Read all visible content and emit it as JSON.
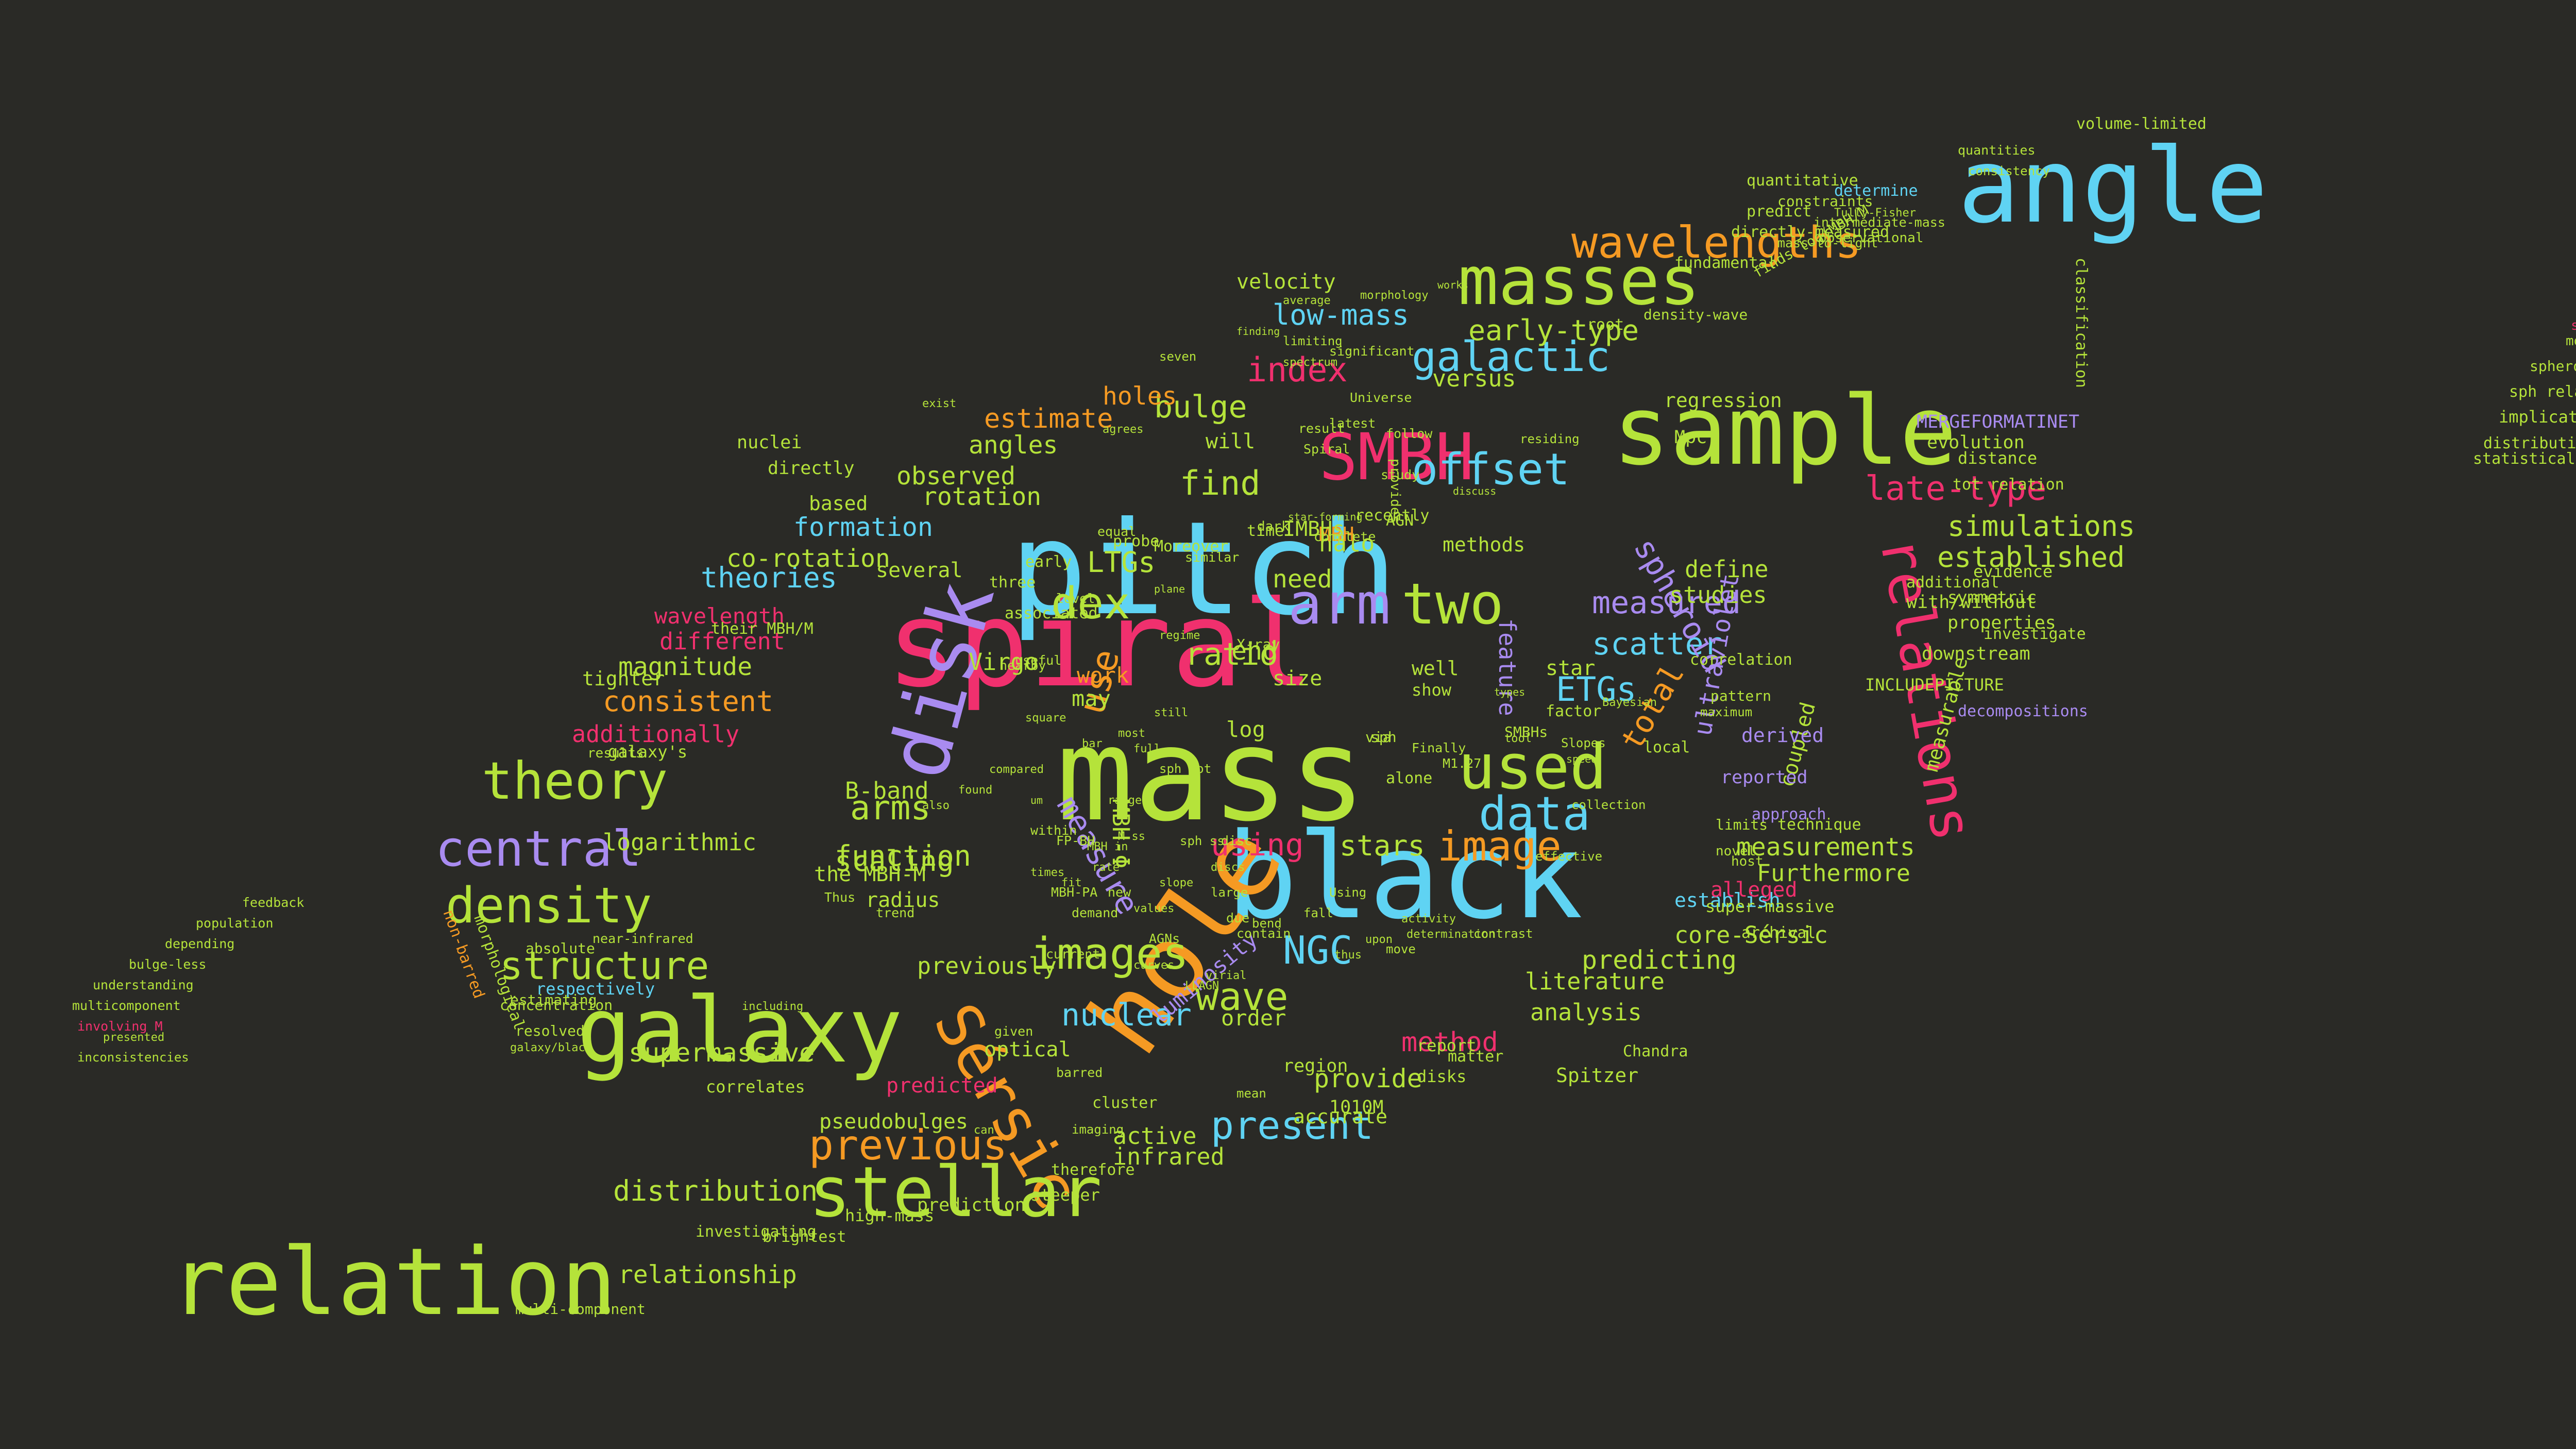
{
  "palette": {
    "background": "#2a2a26",
    "cyan": "#5fd3f3",
    "lime": "#b5e33a",
    "pink": "#f0306e",
    "orange": "#f59a23",
    "purple": "#a98bf0"
  },
  "words": [
    {
      "text": "spiral",
      "color": "pink"
    },
    {
      "text": "pitch",
      "color": "cyan"
    },
    {
      "text": "mass",
      "color": "lime"
    },
    {
      "text": "black",
      "color": "cyan"
    },
    {
      "text": "hole",
      "color": "orange"
    },
    {
      "text": "relation",
      "color": "lime"
    },
    {
      "text": "angle",
      "color": "cyan"
    },
    {
      "text": "sample",
      "color": "lime"
    },
    {
      "text": "galaxy",
      "color": "lime"
    },
    {
      "text": "disk",
      "color": "purple"
    },
    {
      "text": "Sérsic",
      "color": "orange"
    },
    {
      "text": "stellar",
      "color": "lime"
    },
    {
      "text": "masses",
      "color": "lime"
    },
    {
      "text": "SMBH",
      "color": "pink"
    },
    {
      "text": "relations",
      "color": "pink"
    },
    {
      "text": "used",
      "color": "lime"
    },
    {
      "text": "theory",
      "color": "lime"
    },
    {
      "text": "central",
      "color": "purple"
    },
    {
      "text": "density",
      "color": "lime"
    },
    {
      "text": "arm",
      "color": "purple"
    },
    {
      "text": "two",
      "color": "lime"
    },
    {
      "text": "images",
      "color": "lime"
    },
    {
      "text": "offset",
      "color": "cyan"
    },
    {
      "text": "wavelengths",
      "color": "orange"
    },
    {
      "text": "previous",
      "color": "orange"
    },
    {
      "text": "late-type",
      "color": "pink"
    },
    {
      "text": "data",
      "color": "cyan"
    },
    {
      "text": "galactic",
      "color": "cyan"
    },
    {
      "text": "image",
      "color": "orange"
    },
    {
      "text": "structure",
      "color": "lime"
    },
    {
      "text": "dex",
      "color": "lime"
    },
    {
      "text": "NGC",
      "color": "cyan"
    },
    {
      "text": "wave",
      "color": "lime"
    },
    {
      "text": "nuclear",
      "color": "cyan"
    },
    {
      "text": "present",
      "color": "cyan"
    },
    {
      "text": "scatter",
      "color": "cyan"
    },
    {
      "text": "simulations",
      "color": "lime"
    },
    {
      "text": "established",
      "color": "lime"
    },
    {
      "text": "measured",
      "color": "purple"
    },
    {
      "text": "index",
      "color": "pink"
    },
    {
      "text": "early-type",
      "color": "lime"
    },
    {
      "text": "bulge",
      "color": "lime"
    },
    {
      "text": "find",
      "color": "lime"
    },
    {
      "text": "use",
      "color": "orange"
    },
    {
      "text": "arms",
      "color": "lime"
    },
    {
      "text": "scaling",
      "color": "lime"
    },
    {
      "text": "function",
      "color": "lime"
    },
    {
      "text": "using",
      "color": "pink"
    },
    {
      "text": "stars",
      "color": "lime"
    },
    {
      "text": "measure",
      "color": "purple"
    },
    {
      "text": "ETGs",
      "color": "cyan"
    },
    {
      "text": "total",
      "color": "orange"
    },
    {
      "text": "spheroid",
      "color": "purple"
    },
    {
      "text": "low-mass",
      "color": "cyan"
    },
    {
      "text": "holes",
      "color": "orange"
    },
    {
      "text": "estimate",
      "color": "orange"
    },
    {
      "text": "angles",
      "color": "lime"
    },
    {
      "text": "observed",
      "color": "lime"
    },
    {
      "text": "formation",
      "color": "cyan"
    },
    {
      "text": "theories",
      "color": "cyan"
    },
    {
      "text": "co-rotation",
      "color": "lime"
    },
    {
      "text": "wavelength",
      "color": "pink"
    },
    {
      "text": "different",
      "color": "pink"
    },
    {
      "text": "magnitude",
      "color": "lime"
    },
    {
      "text": "consistent",
      "color": "orange"
    },
    {
      "text": "additionally",
      "color": "pink"
    },
    {
      "text": "logarithmic",
      "color": "lime"
    },
    {
      "text": "supermassive",
      "color": "lime"
    },
    {
      "text": "distribution",
      "color": "lime"
    },
    {
      "text": "relationship",
      "color": "lime"
    },
    {
      "text": "measurements",
      "color": "lime"
    },
    {
      "text": "Furthermore",
      "color": "lime"
    },
    {
      "text": "analysis",
      "color": "lime"
    },
    {
      "text": "literature",
      "color": "lime"
    },
    {
      "text": "method",
      "color": "pink"
    },
    {
      "text": "predicting",
      "color": "lime"
    },
    {
      "text": "core-Sérsic",
      "color": "lime"
    },
    {
      "text": "establish",
      "color": "cyan"
    },
    {
      "text": "provide",
      "color": "lime"
    },
    {
      "text": "infrared",
      "color": "lime"
    },
    {
      "text": "active",
      "color": "lime"
    },
    {
      "text": "velocity",
      "color": "lime"
    },
    {
      "text": "halo",
      "color": "lime"
    },
    {
      "text": "LTGs",
      "color": "lime"
    },
    {
      "text": "versus",
      "color": "lime"
    },
    {
      "text": "define",
      "color": "lime"
    },
    {
      "text": "studies",
      "color": "lime"
    },
    {
      "text": "star",
      "color": "lime"
    },
    {
      "text": "feature",
      "color": "purple"
    },
    {
      "text": "MBH",
      "color": "orange"
    },
    {
      "text": "IMBHs",
      "color": "lime"
    },
    {
      "text": "will",
      "color": "lime"
    },
    {
      "text": "methods",
      "color": "lime"
    },
    {
      "text": "well",
      "color": "lime"
    },
    {
      "text": "show",
      "color": "lime"
    },
    {
      "text": "end",
      "color": "lime"
    },
    {
      "text": "size",
      "color": "lime"
    },
    {
      "text": "work",
      "color": "orange"
    },
    {
      "text": "may",
      "color": "lime"
    },
    {
      "text": "log",
      "color": "lime"
    },
    {
      "text": "B-band",
      "color": "lime"
    },
    {
      "text": "radius",
      "color": "lime"
    },
    {
      "text": "the MBH-M",
      "color": "lime"
    },
    {
      "text": "previously",
      "color": "lime"
    },
    {
      "text": "order",
      "color": "lime"
    },
    {
      "text": "luminosity",
      "color": "purple"
    },
    {
      "text": "optical",
      "color": "lime"
    },
    {
      "text": "predicted",
      "color": "pink"
    },
    {
      "text": "pseudobulges",
      "color": "lime"
    },
    {
      "text": "correlates",
      "color": "lime"
    },
    {
      "text": "respectively",
      "color": "cyan"
    },
    {
      "text": "resolved",
      "color": "lime"
    },
    {
      "text": "concentration",
      "color": "lime"
    },
    {
      "text": "estimating",
      "color": "lime"
    },
    {
      "text": "absolute",
      "color": "lime"
    },
    {
      "text": "near-infrared",
      "color": "lime"
    },
    {
      "text": "morphological",
      "color": "lime"
    },
    {
      "text": "non-barred",
      "color": "orange"
    },
    {
      "text": "tighter",
      "color": "lime"
    },
    {
      "text": "galaxy's",
      "color": "lime"
    },
    {
      "text": "results",
      "color": "lime"
    },
    {
      "text": "their MBH/M",
      "color": "lime"
    },
    {
      "text": "several",
      "color": "lime"
    },
    {
      "text": "rotation",
      "color": "lime"
    },
    {
      "text": "based",
      "color": "lime"
    },
    {
      "text": "directly",
      "color": "lime"
    },
    {
      "text": "nuclei",
      "color": "lime"
    },
    {
      "text": "predict",
      "color": "lime"
    },
    {
      "text": "constraints",
      "color": "lime"
    },
    {
      "text": "quantitative",
      "color": "lime"
    },
    {
      "text": "volume-limited",
      "color": "lime"
    },
    {
      "text": "classification",
      "color": "lime"
    },
    {
      "text": "determine",
      "color": "cyan"
    },
    {
      "text": "directly-measured",
      "color": "lime"
    },
    {
      "text": "fundamental",
      "color": "lime"
    },
    {
      "text": "density-wave",
      "color": "lime"
    },
    {
      "text": "observational",
      "color": "lime"
    },
    {
      "text": "quantities",
      "color": "lime"
    },
    {
      "text": "consistency",
      "color": "lime"
    },
    {
      "text": "Tully-Fisher",
      "color": "lime"
    },
    {
      "text": "intermediate-mass",
      "color": "lime"
    },
    {
      "text": "finds log(MBH/M",
      "color": "lime"
    },
    {
      "text": "mass-to-light",
      "color": "lime"
    },
    {
      "text": "regression",
      "color": "lime"
    },
    {
      "text": "MERGEFORMATINET",
      "color": "purple"
    },
    {
      "text": "evolution",
      "color": "lime"
    },
    {
      "text": "distance",
      "color": "lime"
    },
    {
      "text": "tot relation",
      "color": "lime"
    },
    {
      "text": "evidence",
      "color": "lime"
    },
    {
      "text": "additional",
      "color": "lime"
    },
    {
      "text": "symmetric",
      "color": "lime"
    },
    {
      "text": "with/without",
      "color": "lime"
    },
    {
      "text": "properties",
      "color": "lime"
    },
    {
      "text": "downstream",
      "color": "lime"
    },
    {
      "text": "INCLUDEPICTURE",
      "color": "lime"
    },
    {
      "text": "investigate",
      "color": "lime"
    },
    {
      "text": "measurable",
      "color": "lime"
    },
    {
      "text": "decompositions",
      "color": "purple"
    },
    {
      "text": "coupled",
      "color": "lime"
    },
    {
      "text": "ultraviolet",
      "color": "purple"
    },
    {
      "text": "derived",
      "color": "purple"
    },
    {
      "text": "reported",
      "color": "purple"
    },
    {
      "text": "approach",
      "color": "purple"
    },
    {
      "text": "technique",
      "color": "lime"
    },
    {
      "text": "alleged",
      "color": "pink"
    },
    {
      "text": "super-massive",
      "color": "lime"
    },
    {
      "text": "archival",
      "color": "lime"
    },
    {
      "text": "Spitzer",
      "color": "lime"
    },
    {
      "text": "Chandra",
      "color": "lime"
    },
    {
      "text": "1010M",
      "color": "lime"
    },
    {
      "text": "region",
      "color": "lime"
    },
    {
      "text": "accurate",
      "color": "lime"
    },
    {
      "text": "report",
      "color": "lime"
    },
    {
      "text": "matter",
      "color": "lime"
    },
    {
      "text": "disks",
      "color": "lime"
    },
    {
      "text": "cluster",
      "color": "lime"
    },
    {
      "text": "therefore",
      "color": "lime"
    },
    {
      "text": "steeper",
      "color": "lime"
    },
    {
      "text": "prediction",
      "color": "lime"
    },
    {
      "text": "high-mass",
      "color": "lime"
    },
    {
      "text": "brightest",
      "color": "lime"
    },
    {
      "text": "investigating",
      "color": "lime"
    },
    {
      "text": "multi-component",
      "color": "lime"
    },
    {
      "text": "feedback",
      "color": "lime"
    },
    {
      "text": "population",
      "color": "lime"
    },
    {
      "text": "depending",
      "color": "lime"
    },
    {
      "text": "bulge-less",
      "color": "lime"
    },
    {
      "text": "understanding",
      "color": "lime"
    },
    {
      "text": "multicomponent",
      "color": "lime"
    },
    {
      "text": "involving M",
      "color": "pink"
    },
    {
      "text": "presented",
      "color": "lime"
    },
    {
      "text": "inconsistencies",
      "color": "lime"
    },
    {
      "text": "galaxy/black",
      "color": "lime"
    },
    {
      "text": "including",
      "color": "lime"
    },
    {
      "text": "statistically",
      "color": "lime"
    },
    {
      "text": "distributions",
      "color": "lime"
    },
    {
      "text": "implications",
      "color": "lime"
    },
    {
      "text": "sph relation",
      "color": "lime"
    },
    {
      "text": "spheroid's",
      "color": "lime"
    },
    {
      "text": "modeling",
      "color": "lime"
    },
    {
      "text": "selection",
      "color": "pink"
    },
    {
      "text": "Bayesian",
      "color": "lime"
    },
    {
      "text": "correlation",
      "color": "lime"
    },
    {
      "text": "pattern",
      "color": "lime"
    },
    {
      "text": "maximum",
      "color": "lime"
    },
    {
      "text": "limits",
      "color": "lime"
    },
    {
      "text": "host",
      "color": "lime"
    },
    {
      "text": "novel",
      "color": "lime"
    },
    {
      "text": "factor",
      "color": "lime"
    },
    {
      "text": "Slopes",
      "color": "lime"
    },
    {
      "text": "SMBHs",
      "color": "lime"
    },
    {
      "text": "alone",
      "color": "lime"
    },
    {
      "text": "sph",
      "color": "lime"
    },
    {
      "text": "via",
      "color": "lime"
    },
    {
      "text": "M1.27",
      "color": "lime"
    },
    {
      "text": "Finally",
      "color": "lime"
    },
    {
      "text": "Thus",
      "color": "lime"
    },
    {
      "text": "trend",
      "color": "lime"
    },
    {
      "text": "MBH-PA",
      "color": "lime"
    },
    {
      "text": "within",
      "color": "lime"
    },
    {
      "text": "demand",
      "color": "lime"
    },
    {
      "text": "current",
      "color": "lime"
    },
    {
      "text": "given",
      "color": "lime"
    },
    {
      "text": "barred",
      "color": "lime"
    },
    {
      "text": "contain",
      "color": "lime"
    },
    {
      "text": "due",
      "color": "lime"
    },
    {
      "text": "need",
      "color": "lime"
    },
    {
      "text": "time",
      "color": "lime"
    },
    {
      "text": "dark",
      "color": "lime"
    },
    {
      "text": "X-ray",
      "color": "lime"
    },
    {
      "text": "recently",
      "color": "lime"
    },
    {
      "text": "provides",
      "color": "lime"
    },
    {
      "text": "AGN",
      "color": "lime"
    },
    {
      "text": "Universe",
      "color": "lime"
    },
    {
      "text": "Spiral",
      "color": "lime"
    },
    {
      "text": "latest",
      "color": "lime"
    },
    {
      "text": "result",
      "color": "lime"
    },
    {
      "text": "follow",
      "color": "lime"
    },
    {
      "text": "study",
      "color": "lime"
    },
    {
      "text": "associated",
      "color": "lime"
    },
    {
      "text": "Virgo",
      "color": "lime"
    },
    {
      "text": "three",
      "color": "lime"
    },
    {
      "text": "early",
      "color": "lime"
    },
    {
      "text": "level",
      "color": "lime"
    },
    {
      "text": "nearby",
      "color": "lime"
    },
    {
      "text": "useful",
      "color": "lime"
    },
    {
      "text": "square",
      "color": "lime"
    },
    {
      "text": "compared",
      "color": "lime"
    },
    {
      "text": "found",
      "color": "lime"
    },
    {
      "text": "also",
      "color": "lime"
    },
    {
      "text": "um",
      "color": "lime"
    },
    {
      "text": "FP-BH",
      "color": "lime"
    },
    {
      "text": "MBH-Φ",
      "color": "lime"
    },
    {
      "text": "ratio",
      "color": "lime"
    },
    {
      "text": "probe",
      "color": "lime"
    },
    {
      "text": "Moreover",
      "color": "lime"
    },
    {
      "text": "similar",
      "color": "lime"
    },
    {
      "text": "equal",
      "color": "lime"
    },
    {
      "text": "limiting",
      "color": "lime"
    },
    {
      "text": "average",
      "color": "lime"
    },
    {
      "text": "finding",
      "color": "lime"
    },
    {
      "text": "spectrum",
      "color": "lime"
    },
    {
      "text": "significant",
      "color": "lime"
    },
    {
      "text": "morphology",
      "color": "lime"
    },
    {
      "text": "works",
      "color": "lime"
    },
    {
      "text": "residing",
      "color": "lime"
    },
    {
      "text": "root",
      "color": "lime"
    },
    {
      "text": "Mpc",
      "color": "lime"
    },
    {
      "text": "seven",
      "color": "lime"
    },
    {
      "text": "agrees",
      "color": "lime"
    },
    {
      "text": "exist",
      "color": "lime"
    },
    {
      "text": "plane",
      "color": "lime"
    },
    {
      "text": "complete",
      "color": "lime"
    },
    {
      "text": "star-forming",
      "color": "lime"
    },
    {
      "text": "discuss",
      "color": "lime"
    },
    {
      "text": "tool",
      "color": "lime"
    },
    {
      "text": "speed",
      "color": "lime"
    },
    {
      "text": "types",
      "color": "lime"
    },
    {
      "text": "local",
      "color": "lime"
    },
    {
      "text": "collection",
      "color": "lime"
    },
    {
      "text": "effective",
      "color": "lime"
    },
    {
      "text": "contrast",
      "color": "lime"
    },
    {
      "text": "activity",
      "color": "lime"
    },
    {
      "text": "determination",
      "color": "lime"
    },
    {
      "text": "move",
      "color": "lime"
    },
    {
      "text": "thus",
      "color": "lime"
    },
    {
      "text": "mean",
      "color": "lime"
    },
    {
      "text": "imaging",
      "color": "lime"
    },
    {
      "text": "can",
      "color": "lime"
    },
    {
      "text": "upon",
      "color": "lime"
    },
    {
      "text": "Using",
      "color": "lime"
    },
    {
      "text": "fall",
      "color": "lime"
    },
    {
      "text": "bend",
      "color": "lime"
    },
    {
      "text": "disc",
      "color": "lime"
    },
    {
      "text": "discs",
      "color": "lime"
    },
    {
      "text": "slope",
      "color": "lime"
    },
    {
      "text": "values",
      "color": "lime"
    },
    {
      "text": "curves",
      "color": "lime"
    },
    {
      "text": "virial",
      "color": "lime"
    },
    {
      "text": "LLAGN",
      "color": "lime"
    },
    {
      "text": "AGNs",
      "color": "lime"
    },
    {
      "text": "new",
      "color": "lime"
    },
    {
      "text": "large",
      "color": "lime"
    },
    {
      "text": "sph ss",
      "color": "lime"
    },
    {
      "text": "sph tot",
      "color": "lime"
    },
    {
      "text": "M ss",
      "color": "lime"
    },
    {
      "text": "range",
      "color": "lime"
    },
    {
      "text": "fit",
      "color": "lime"
    },
    {
      "text": "rate",
      "color": "lime"
    },
    {
      "text": "MBH in",
      "color": "lime"
    },
    {
      "text": "times",
      "color": "lime"
    },
    {
      "text": "full",
      "color": "lime"
    },
    {
      "text": "most",
      "color": "lime"
    },
    {
      "text": "bar",
      "color": "lime"
    },
    {
      "text": "still",
      "color": "lime"
    },
    {
      "text": "regime",
      "color": "lime"
    }
  ]
}
